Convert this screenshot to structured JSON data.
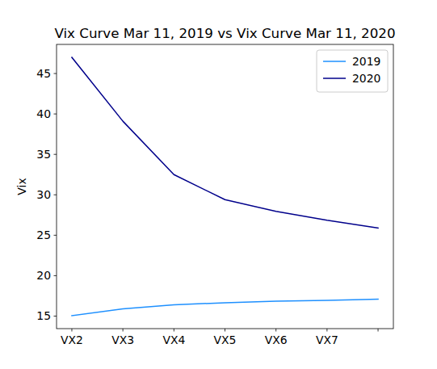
{
  "chart_data": {
    "type": "line",
    "title": "Vix Curve Mar 11, 2019 vs Vix Curve Mar 11, 2020",
    "y_label": "Vix",
    "categories": [
      "VX2",
      "VX3",
      "VX4",
      "VX5",
      "VX6",
      "VX7",
      null
    ],
    "series": [
      {
        "name": "2019",
        "color": "#1e90ff",
        "values": [
          15.05,
          15.9,
          16.4,
          16.65,
          16.85,
          16.95,
          17.1
        ]
      },
      {
        "name": "2020",
        "color": "#00008b",
        "values": [
          47.0,
          39.1,
          32.5,
          29.4,
          27.95,
          26.85,
          25.9
        ]
      }
    ],
    "ylim": [
      13.45,
      48.6
    ],
    "yticks": [
      15,
      20,
      25,
      30,
      35,
      40,
      45
    ],
    "grid": false,
    "legend": "upper right"
  }
}
